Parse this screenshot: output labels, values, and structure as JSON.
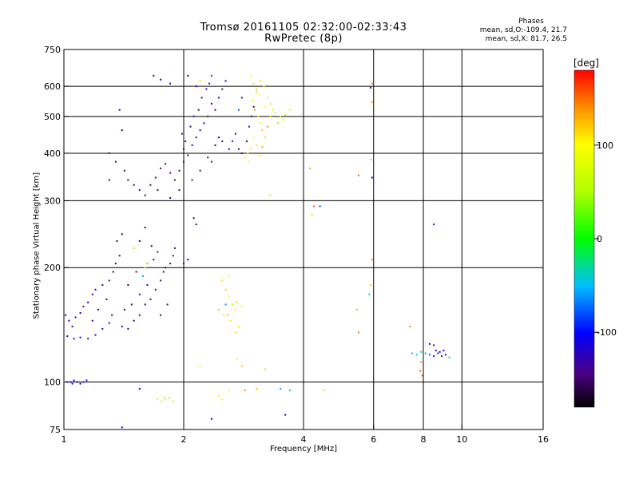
{
  "header": {
    "title_line1": "Tromsø 20161105 02:32:00-02:33:43",
    "title_line2": "RwPretec (8p)"
  },
  "phase_stats": {
    "heading": "Phases",
    "line_o": "mean, sd,O:-109.4, 21.7",
    "line_x": "mean, sd,X:  81.7, 26.5"
  },
  "chart_data": {
    "type": "scatter",
    "xlabel": "Frequency [MHz]",
    "ylabel": "Stationary phase Virtual Height [km]",
    "x_scale": "log",
    "y_scale": "log",
    "xlim": [
      1,
      16
    ],
    "ylim": [
      75,
      750
    ],
    "x_ticks": [
      1,
      2,
      4,
      6,
      8,
      10,
      16
    ],
    "x_tick_labels": [
      "1",
      "2",
      "4",
      "6",
      "8",
      "10",
      "16"
    ],
    "y_ticks": [
      75,
      100,
      200,
      300,
      400,
      500,
      600,
      750
    ],
    "y_tick_labels": [
      "75",
      "100",
      "200",
      "300",
      "400",
      "500",
      "600",
      "750"
    ],
    "x_gridlines": [
      2,
      4,
      6,
      8,
      10
    ],
    "y_gridlines": [
      100,
      200,
      300,
      400,
      500,
      600
    ],
    "colorbar": {
      "label": "[deg]",
      "range": [
        -180,
        180
      ],
      "ticks": [
        100,
        0,
        -100
      ],
      "tick_labels": [
        "100",
        "0",
        "-100"
      ]
    },
    "points": [
      {
        "x": 1.02,
        "y": 100,
        "p": -110
      },
      {
        "x": 1.04,
        "y": 100,
        "p": -112
      },
      {
        "x": 1.06,
        "y": 101,
        "p": -108
      },
      {
        "x": 1.08,
        "y": 100,
        "p": -115
      },
      {
        "x": 1.1,
        "y": 99,
        "p": -105
      },
      {
        "x": 1.12,
        "y": 100,
        "p": -110
      },
      {
        "x": 1.14,
        "y": 101,
        "p": -100
      },
      {
        "x": 1.05,
        "y": 99,
        "p": -118
      },
      {
        "x": 1.01,
        "y": 150,
        "p": -120
      },
      {
        "x": 1.03,
        "y": 145,
        "p": -115
      },
      {
        "x": 1.05,
        "y": 140,
        "p": -125
      },
      {
        "x": 1.07,
        "y": 148,
        "p": -118
      },
      {
        "x": 1.1,
        "y": 152,
        "p": -110
      },
      {
        "x": 1.12,
        "y": 158,
        "p": -130
      },
      {
        "x": 1.15,
        "y": 162,
        "p": -105
      },
      {
        "x": 1.18,
        "y": 170,
        "p": -140
      },
      {
        "x": 1.2,
        "y": 175,
        "p": -120
      },
      {
        "x": 1.25,
        "y": 180,
        "p": -135
      },
      {
        "x": 1.28,
        "y": 165,
        "p": -150
      },
      {
        "x": 1.3,
        "y": 185,
        "p": -145
      },
      {
        "x": 1.33,
        "y": 195,
        "p": -150
      },
      {
        "x": 1.35,
        "y": 205,
        "p": -155
      },
      {
        "x": 1.38,
        "y": 215,
        "p": -150
      },
      {
        "x": 1.36,
        "y": 235,
        "p": -145
      },
      {
        "x": 1.4,
        "y": 245,
        "p": -150
      },
      {
        "x": 1.02,
        "y": 132,
        "p": -115
      },
      {
        "x": 1.06,
        "y": 130,
        "p": -112
      },
      {
        "x": 1.1,
        "y": 131,
        "p": -120
      },
      {
        "x": 1.15,
        "y": 130,
        "p": -118
      },
      {
        "x": 1.2,
        "y": 133,
        "p": -122
      },
      {
        "x": 1.25,
        "y": 138,
        "p": -130
      },
      {
        "x": 1.3,
        "y": 143,
        "p": -135
      },
      {
        "x": 1.22,
        "y": 155,
        "p": -125
      },
      {
        "x": 1.18,
        "y": 145,
        "p": -115
      },
      {
        "x": 1.32,
        "y": 150,
        "p": -140
      },
      {
        "x": 1.4,
        "y": 140,
        "p": -150
      },
      {
        "x": 1.45,
        "y": 138,
        "p": -145
      },
      {
        "x": 1.5,
        "y": 145,
        "p": -150
      },
      {
        "x": 1.55,
        "y": 150,
        "p": -148
      },
      {
        "x": 1.6,
        "y": 160,
        "p": -150
      },
      {
        "x": 1.65,
        "y": 165,
        "p": -140
      },
      {
        "x": 1.7,
        "y": 175,
        "p": -150
      },
      {
        "x": 1.75,
        "y": 185,
        "p": -145
      },
      {
        "x": 1.8,
        "y": 200,
        "p": -150
      },
      {
        "x": 1.62,
        "y": 180,
        "p": -120
      },
      {
        "x": 1.55,
        "y": 170,
        "p": -110
      },
      {
        "x": 1.68,
        "y": 210,
        "p": -150
      },
      {
        "x": 1.72,
        "y": 220,
        "p": -145
      },
      {
        "x": 1.66,
        "y": 228,
        "p": -150
      },
      {
        "x": 1.58,
        "y": 190,
        "p": -60
      },
      {
        "x": 1.6,
        "y": 200,
        "p": 50
      },
      {
        "x": 1.62,
        "y": 205,
        "p": 20
      },
      {
        "x": 1.52,
        "y": 195,
        "p": -150
      },
      {
        "x": 1.45,
        "y": 180,
        "p": -155
      },
      {
        "x": 1.48,
        "y": 160,
        "p": -150
      },
      {
        "x": 1.42,
        "y": 155,
        "p": -148
      },
      {
        "x": 1.6,
        "y": 255,
        "p": -150
      },
      {
        "x": 1.55,
        "y": 235,
        "p": -150
      },
      {
        "x": 1.5,
        "y": 225,
        "p": 40
      },
      {
        "x": 1.85,
        "y": 205,
        "p": -150
      },
      {
        "x": 1.88,
        "y": 215,
        "p": -145
      },
      {
        "x": 1.9,
        "y": 225,
        "p": -150
      },
      {
        "x": 1.78,
        "y": 195,
        "p": -155
      },
      {
        "x": 1.75,
        "y": 150,
        "p": -150
      },
      {
        "x": 1.82,
        "y": 160,
        "p": -148
      },
      {
        "x": 1.5,
        "y": 330,
        "p": -150
      },
      {
        "x": 1.55,
        "y": 320,
        "p": -148
      },
      {
        "x": 1.6,
        "y": 310,
        "p": -152
      },
      {
        "x": 1.65,
        "y": 330,
        "p": -150
      },
      {
        "x": 1.7,
        "y": 345,
        "p": -148
      },
      {
        "x": 1.72,
        "y": 320,
        "p": -150
      },
      {
        "x": 1.75,
        "y": 365,
        "p": -152
      },
      {
        "x": 1.8,
        "y": 375,
        "p": -150
      },
      {
        "x": 1.85,
        "y": 355,
        "p": -140
      },
      {
        "x": 1.9,
        "y": 340,
        "p": -150
      },
      {
        "x": 1.95,
        "y": 360,
        "p": -145
      },
      {
        "x": 2.0,
        "y": 380,
        "p": -140
      },
      {
        "x": 2.05,
        "y": 395,
        "p": -150
      },
      {
        "x": 2.1,
        "y": 420,
        "p": -130
      },
      {
        "x": 2.15,
        "y": 440,
        "p": -150
      },
      {
        "x": 2.2,
        "y": 460,
        "p": -140
      },
      {
        "x": 2.25,
        "y": 480,
        "p": -130
      },
      {
        "x": 2.3,
        "y": 500,
        "p": -150
      },
      {
        "x": 2.0,
        "y": 410,
        "p": -150
      },
      {
        "x": 2.02,
        "y": 430,
        "p": -148
      },
      {
        "x": 1.98,
        "y": 450,
        "p": -150
      },
      {
        "x": 2.08,
        "y": 470,
        "p": -150
      },
      {
        "x": 2.12,
        "y": 500,
        "p": -145
      },
      {
        "x": 2.18,
        "y": 520,
        "p": -150
      },
      {
        "x": 2.22,
        "y": 560,
        "p": -150
      },
      {
        "x": 2.28,
        "y": 590,
        "p": -130
      },
      {
        "x": 2.32,
        "y": 610,
        "p": -140
      },
      {
        "x": 2.35,
        "y": 540,
        "p": -150
      },
      {
        "x": 2.4,
        "y": 520,
        "p": -145
      },
      {
        "x": 2.45,
        "y": 560,
        "p": -130
      },
      {
        "x": 2.5,
        "y": 590,
        "p": -150
      },
      {
        "x": 2.55,
        "y": 620,
        "p": -100
      },
      {
        "x": 2.4,
        "y": 420,
        "p": -150
      },
      {
        "x": 2.45,
        "y": 440,
        "p": -150
      },
      {
        "x": 2.5,
        "y": 430,
        "p": -140
      },
      {
        "x": 2.6,
        "y": 410,
        "p": -100
      },
      {
        "x": 2.65,
        "y": 430,
        "p": -120
      },
      {
        "x": 2.7,
        "y": 450,
        "p": -150
      },
      {
        "x": 2.75,
        "y": 410,
        "p": -145
      },
      {
        "x": 2.8,
        "y": 400,
        "p": -150
      },
      {
        "x": 2.3,
        "y": 390,
        "p": -150
      },
      {
        "x": 2.35,
        "y": 380,
        "p": -148
      },
      {
        "x": 2.2,
        "y": 360,
        "p": -150
      },
      {
        "x": 2.1,
        "y": 340,
        "p": -148
      },
      {
        "x": 1.95,
        "y": 320,
        "p": -150
      },
      {
        "x": 1.85,
        "y": 305,
        "p": -152
      },
      {
        "x": 1.42,
        "y": 360,
        "p": -150
      },
      {
        "x": 1.45,
        "y": 340,
        "p": -148
      },
      {
        "x": 1.3,
        "y": 400,
        "p": -130
      },
      {
        "x": 1.35,
        "y": 380,
        "p": -150
      },
      {
        "x": 1.4,
        "y": 460,
        "p": -150
      },
      {
        "x": 1.38,
        "y": 520,
        "p": -130
      },
      {
        "x": 1.3,
        "y": 340,
        "p": -150
      },
      {
        "x": 1.68,
        "y": 640,
        "p": -150
      },
      {
        "x": 1.75,
        "y": 625,
        "p": -120
      },
      {
        "x": 1.85,
        "y": 610,
        "p": -140
      },
      {
        "x": 2.05,
        "y": 640,
        "p": -150
      },
      {
        "x": 2.15,
        "y": 600,
        "p": -100
      },
      {
        "x": 2.2,
        "y": 620,
        "p": 60
      },
      {
        "x": 2.35,
        "y": 640,
        "p": -80
      },
      {
        "x": 2.12,
        "y": 270,
        "p": -150
      },
      {
        "x": 2.15,
        "y": 260,
        "p": -148
      },
      {
        "x": 2.05,
        "y": 210,
        "p": -100
      },
      {
        "x": 2.0,
        "y": 205,
        "p": -150
      },
      {
        "x": 2.95,
        "y": 640,
        "p": 90
      },
      {
        "x": 3.0,
        "y": 610,
        "p": 110
      },
      {
        "x": 3.05,
        "y": 590,
        "p": 120
      },
      {
        "x": 3.1,
        "y": 570,
        "p": 100
      },
      {
        "x": 2.98,
        "y": 550,
        "p": 80
      },
      {
        "x": 3.02,
        "y": 520,
        "p": 130
      },
      {
        "x": 3.08,
        "y": 500,
        "p": 110
      },
      {
        "x": 3.12,
        "y": 480,
        "p": 90
      },
      {
        "x": 3.15,
        "y": 460,
        "p": 120
      },
      {
        "x": 3.0,
        "y": 440,
        "p": 100
      },
      {
        "x": 3.05,
        "y": 420,
        "p": 110
      },
      {
        "x": 2.95,
        "y": 410,
        "p": 90
      },
      {
        "x": 2.9,
        "y": 400,
        "p": 100
      },
      {
        "x": 2.85,
        "y": 390,
        "p": 105
      },
      {
        "x": 2.92,
        "y": 380,
        "p": 95
      },
      {
        "x": 3.1,
        "y": 395,
        "p": 110
      },
      {
        "x": 3.15,
        "y": 415,
        "p": 130
      },
      {
        "x": 3.2,
        "y": 440,
        "p": 120
      },
      {
        "x": 3.25,
        "y": 470,
        "p": 140
      },
      {
        "x": 3.3,
        "y": 500,
        "p": 120
      },
      {
        "x": 3.2,
        "y": 530,
        "p": 100
      },
      {
        "x": 3.25,
        "y": 560,
        "p": 80
      },
      {
        "x": 3.18,
        "y": 600,
        "p": 90
      },
      {
        "x": 3.12,
        "y": 620,
        "p": 110
      },
      {
        "x": 3.3,
        "y": 540,
        "p": 60
      },
      {
        "x": 3.35,
        "y": 520,
        "p": 70
      },
      {
        "x": 3.4,
        "y": 510,
        "p": 80
      },
      {
        "x": 3.5,
        "y": 500,
        "p": 60
      },
      {
        "x": 3.6,
        "y": 505,
        "p": 50
      },
      {
        "x": 3.7,
        "y": 520,
        "p": 70
      },
      {
        "x": 3.45,
        "y": 480,
        "p": 40
      },
      {
        "x": 3.55,
        "y": 490,
        "p": 80
      },
      {
        "x": 2.88,
        "y": 430,
        "p": -150
      },
      {
        "x": 2.92,
        "y": 470,
        "p": -140
      },
      {
        "x": 2.96,
        "y": 500,
        "p": -130
      },
      {
        "x": 3.0,
        "y": 530,
        "p": -150
      },
      {
        "x": 2.75,
        "y": 520,
        "p": -80
      },
      {
        "x": 2.8,
        "y": 560,
        "p": -130
      },
      {
        "x": 3.05,
        "y": 580,
        "p": 50
      },
      {
        "x": 3.3,
        "y": 310,
        "p": 60
      },
      {
        "x": 2.5,
        "y": 185,
        "p": 60
      },
      {
        "x": 2.55,
        "y": 175,
        "p": 50
      },
      {
        "x": 2.6,
        "y": 168,
        "p": 70
      },
      {
        "x": 2.65,
        "y": 160,
        "p": 60
      },
      {
        "x": 2.7,
        "y": 155,
        "p": 80
      },
      {
        "x": 2.58,
        "y": 150,
        "p": 40
      },
      {
        "x": 2.62,
        "y": 145,
        "p": 60
      },
      {
        "x": 2.72,
        "y": 162,
        "p": 50
      },
      {
        "x": 2.8,
        "y": 158,
        "p": 90
      },
      {
        "x": 2.52,
        "y": 150,
        "p": 70
      },
      {
        "x": 2.75,
        "y": 140,
        "p": 60
      },
      {
        "x": 2.6,
        "y": 190,
        "p": 80
      },
      {
        "x": 2.7,
        "y": 135,
        "p": 50
      },
      {
        "x": 2.45,
        "y": 155,
        "p": 40
      },
      {
        "x": 2.55,
        "y": 160,
        "p": -60
      },
      {
        "x": 2.72,
        "y": 115,
        "p": 80
      },
      {
        "x": 2.8,
        "y": 110,
        "p": 120
      },
      {
        "x": 1.72,
        "y": 90,
        "p": 70
      },
      {
        "x": 1.76,
        "y": 89,
        "p": 60
      },
      {
        "x": 1.8,
        "y": 90,
        "p": 80
      },
      {
        "x": 1.84,
        "y": 91,
        "p": 50
      },
      {
        "x": 1.88,
        "y": 89,
        "p": 70
      },
      {
        "x": 1.78,
        "y": 91,
        "p": 60
      },
      {
        "x": 2.45,
        "y": 92,
        "p": 90
      },
      {
        "x": 2.5,
        "y": 90,
        "p": 100
      },
      {
        "x": 2.6,
        "y": 95,
        "p": 110
      },
      {
        "x": 2.85,
        "y": 95,
        "p": 140
      },
      {
        "x": 3.05,
        "y": 96,
        "p": 130
      },
      {
        "x": 3.2,
        "y": 108,
        "p": 120
      },
      {
        "x": 3.5,
        "y": 96,
        "p": -60
      },
      {
        "x": 3.7,
        "y": 95,
        "p": -40
      },
      {
        "x": 3.6,
        "y": 82,
        "p": -100
      },
      {
        "x": 2.35,
        "y": 80,
        "p": -120
      },
      {
        "x": 1.4,
        "y": 76,
        "p": -110
      },
      {
        "x": 1.55,
        "y": 96,
        "p": -120
      },
      {
        "x": 4.5,
        "y": 95,
        "p": 120
      },
      {
        "x": 2.2,
        "y": 110,
        "p": 80
      },
      {
        "x": 4.15,
        "y": 365,
        "p": 130
      },
      {
        "x": 4.25,
        "y": 290,
        "p": 150
      },
      {
        "x": 4.4,
        "y": 290,
        "p": -80
      },
      {
        "x": 4.2,
        "y": 275,
        "p": 120
      },
      {
        "x": 5.5,
        "y": 350,
        "p": 150
      },
      {
        "x": 5.95,
        "y": 210,
        "p": 140
      },
      {
        "x": 5.9,
        "y": 180,
        "p": 120
      },
      {
        "x": 5.85,
        "y": 170,
        "p": -30
      },
      {
        "x": 5.95,
        "y": 610,
        "p": 140
      },
      {
        "x": 5.9,
        "y": 595,
        "p": -140
      },
      {
        "x": 5.95,
        "y": 545,
        "p": 130
      },
      {
        "x": 5.92,
        "y": 385,
        "p": 120
      },
      {
        "x": 5.95,
        "y": 345,
        "p": -120
      },
      {
        "x": 5.5,
        "y": 135,
        "p": 150
      },
      {
        "x": 5.45,
        "y": 155,
        "p": 130
      },
      {
        "x": 7.4,
        "y": 140,
        "p": 140
      },
      {
        "x": 8.5,
        "y": 260,
        "p": -100
      },
      {
        "x": 7.5,
        "y": 119,
        "p": -50
      },
      {
        "x": 7.7,
        "y": 118,
        "p": -40
      },
      {
        "x": 7.9,
        "y": 120,
        "p": -30
      },
      {
        "x": 8.1,
        "y": 119,
        "p": -60
      },
      {
        "x": 8.3,
        "y": 118,
        "p": -80
      },
      {
        "x": 8.5,
        "y": 117,
        "p": -100
      },
      {
        "x": 8.7,
        "y": 119,
        "p": -90
      },
      {
        "x": 8.9,
        "y": 117,
        "p": -120
      },
      {
        "x": 9.1,
        "y": 118,
        "p": -110
      },
      {
        "x": 9.3,
        "y": 116,
        "p": -40
      },
      {
        "x": 8.6,
        "y": 121,
        "p": -110
      },
      {
        "x": 8.8,
        "y": 120,
        "p": -100
      },
      {
        "x": 9.0,
        "y": 121,
        "p": -120
      },
      {
        "x": 8.3,
        "y": 126,
        "p": -120
      },
      {
        "x": 8.5,
        "y": 125,
        "p": -110
      },
      {
        "x": 7.9,
        "y": 113,
        "p": 140
      },
      {
        "x": 7.85,
        "y": 107,
        "p": 150
      },
      {
        "x": 7.95,
        "y": 104,
        "p": 150
      }
    ]
  }
}
